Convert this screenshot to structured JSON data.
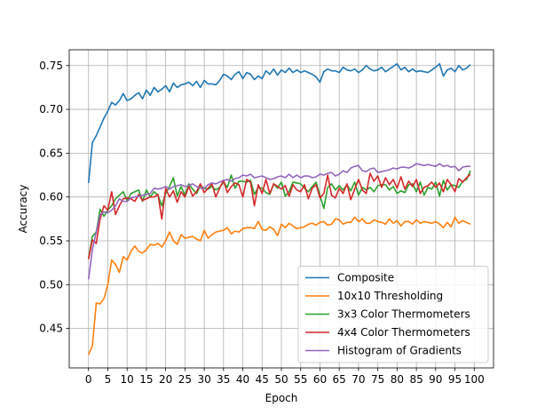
{
  "chart_data": {
    "type": "line",
    "title": "",
    "xlabel": "Epoch",
    "ylabel": "Accuracy",
    "xlim": [
      -5,
      105
    ],
    "ylim": [
      0.405,
      0.768
    ],
    "xticks": [
      0,
      5,
      10,
      15,
      20,
      25,
      30,
      35,
      40,
      45,
      50,
      55,
      60,
      65,
      70,
      75,
      80,
      85,
      90,
      95,
      100
    ],
    "yticks": [
      0.45,
      0.5,
      0.55,
      0.6,
      0.65,
      0.7,
      0.75
    ],
    "grid": true,
    "legend_position": "lower-right",
    "x": [
      0,
      1,
      2,
      3,
      4,
      5,
      6,
      7,
      8,
      9,
      10,
      11,
      12,
      13,
      14,
      15,
      16,
      17,
      18,
      19,
      20,
      21,
      22,
      23,
      24,
      25,
      26,
      27,
      28,
      29,
      30,
      31,
      32,
      33,
      34,
      35,
      36,
      37,
      38,
      39,
      40,
      41,
      42,
      43,
      44,
      45,
      46,
      47,
      48,
      49,
      50,
      51,
      52,
      53,
      54,
      55,
      56,
      57,
      58,
      59,
      60,
      61,
      62,
      63,
      64,
      65,
      66,
      67,
      68,
      69,
      70,
      71,
      72,
      73,
      74,
      75,
      76,
      77,
      78,
      79,
      80,
      81,
      82,
      83,
      84,
      85,
      86,
      87,
      88,
      89,
      90,
      91,
      92,
      93,
      94,
      95,
      96,
      97,
      98,
      99
    ],
    "series": [
      {
        "name": "Composite",
        "color": "#1f77b4",
        "values": [
          0.616,
          0.662,
          0.67,
          0.68,
          0.69,
          0.698,
          0.708,
          0.705,
          0.71,
          0.718,
          0.71,
          0.712,
          0.716,
          0.719,
          0.712,
          0.722,
          0.716,
          0.725,
          0.72,
          0.723,
          0.727,
          0.72,
          0.73,
          0.725,
          0.728,
          0.729,
          0.731,
          0.727,
          0.732,
          0.725,
          0.733,
          0.729,
          0.729,
          0.728,
          0.733,
          0.74,
          0.738,
          0.734,
          0.74,
          0.743,
          0.735,
          0.742,
          0.74,
          0.734,
          0.738,
          0.735,
          0.744,
          0.74,
          0.746,
          0.739,
          0.745,
          0.742,
          0.747,
          0.742,
          0.745,
          0.742,
          0.744,
          0.742,
          0.74,
          0.737,
          0.731,
          0.743,
          0.746,
          0.744,
          0.744,
          0.742,
          0.748,
          0.745,
          0.744,
          0.746,
          0.742,
          0.745,
          0.75,
          0.746,
          0.744,
          0.745,
          0.748,
          0.743,
          0.746,
          0.749,
          0.752,
          0.745,
          0.748,
          0.743,
          0.746,
          0.743,
          0.744,
          0.743,
          0.742,
          0.745,
          0.748,
          0.752,
          0.738,
          0.745,
          0.747,
          0.743,
          0.75,
          0.745,
          0.747,
          0.751
        ]
      },
      {
        "name": "10x10 Thresholding",
        "color": "#ff7f0e",
        "values": [
          0.42,
          0.43,
          0.479,
          0.478,
          0.484,
          0.5,
          0.528,
          0.523,
          0.514,
          0.532,
          0.528,
          0.538,
          0.544,
          0.538,
          0.536,
          0.54,
          0.546,
          0.545,
          0.547,
          0.543,
          0.55,
          0.56,
          0.55,
          0.546,
          0.557,
          0.553,
          0.554,
          0.555,
          0.552,
          0.55,
          0.562,
          0.553,
          0.557,
          0.56,
          0.561,
          0.562,
          0.565,
          0.558,
          0.561,
          0.56,
          0.564,
          0.565,
          0.565,
          0.564,
          0.572,
          0.563,
          0.562,
          0.566,
          0.563,
          0.556,
          0.569,
          0.565,
          0.57,
          0.567,
          0.564,
          0.565,
          0.566,
          0.569,
          0.57,
          0.568,
          0.571,
          0.572,
          0.568,
          0.569,
          0.575,
          0.574,
          0.569,
          0.571,
          0.571,
          0.577,
          0.572,
          0.575,
          0.57,
          0.57,
          0.574,
          0.572,
          0.571,
          0.569,
          0.575,
          0.57,
          0.573,
          0.567,
          0.572,
          0.572,
          0.569,
          0.574,
          0.57,
          0.572,
          0.571,
          0.57,
          0.572,
          0.569,
          0.565,
          0.571,
          0.566,
          0.577,
          0.57,
          0.573,
          0.571,
          0.569
        ]
      },
      {
        "name": "3x3 Color Thermometers",
        "color": "#2ca02c",
        "values": [
          0.53,
          0.555,
          0.56,
          0.586,
          0.578,
          0.585,
          0.59,
          0.598,
          0.602,
          0.606,
          0.596,
          0.604,
          0.606,
          0.608,
          0.595,
          0.608,
          0.6,
          0.606,
          0.602,
          0.59,
          0.604,
          0.612,
          0.622,
          0.601,
          0.612,
          0.602,
          0.615,
          0.609,
          0.604,
          0.613,
          0.61,
          0.609,
          0.612,
          0.608,
          0.611,
          0.617,
          0.611,
          0.625,
          0.61,
          0.618,
          0.618,
          0.617,
          0.619,
          0.603,
          0.611,
          0.61,
          0.605,
          0.603,
          0.615,
          0.61,
          0.617,
          0.601,
          0.606,
          0.617,
          0.616,
          0.615,
          0.61,
          0.606,
          0.612,
          0.617,
          0.602,
          0.587,
          0.611,
          0.615,
          0.608,
          0.613,
          0.608,
          0.614,
          0.607,
          0.617,
          0.602,
          0.611,
          0.608,
          0.611,
          0.606,
          0.613,
          0.614,
          0.614,
          0.608,
          0.612,
          0.604,
          0.607,
          0.605,
          0.614,
          0.615,
          0.606,
          0.617,
          0.602,
          0.611,
          0.609,
          0.617,
          0.601,
          0.619,
          0.608,
          0.614,
          0.613,
          0.611,
          0.618,
          0.62,
          0.63
        ]
      },
      {
        "name": "4x4 Color Thermometers",
        "color": "#d62728",
        "values": [
          0.529,
          0.551,
          0.547,
          0.575,
          0.59,
          0.585,
          0.606,
          0.58,
          0.59,
          0.598,
          0.599,
          0.598,
          0.595,
          0.603,
          0.596,
          0.598,
          0.6,
          0.6,
          0.603,
          0.575,
          0.61,
          0.6,
          0.607,
          0.594,
          0.606,
          0.6,
          0.612,
          0.601,
          0.606,
          0.615,
          0.605,
          0.61,
          0.615,
          0.6,
          0.61,
          0.619,
          0.605,
          0.612,
          0.616,
          0.614,
          0.6,
          0.62,
          0.617,
          0.59,
          0.614,
          0.604,
          0.62,
          0.604,
          0.615,
          0.612,
          0.609,
          0.613,
          0.601,
          0.614,
          0.608,
          0.606,
          0.614,
          0.598,
          0.61,
          0.614,
          0.599,
          0.604,
          0.625,
          0.602,
          0.599,
          0.61,
          0.604,
          0.615,
          0.597,
          0.609,
          0.62,
          0.608,
          0.604,
          0.627,
          0.618,
          0.624,
          0.611,
          0.622,
          0.614,
          0.62,
          0.61,
          0.623,
          0.609,
          0.618,
          0.612,
          0.62,
          0.604,
          0.611,
          0.613,
          0.617,
          0.611,
          0.616,
          0.606,
          0.62,
          0.614,
          0.606,
          0.621,
          0.617,
          0.622,
          0.626
        ]
      },
      {
        "name": "Histogram of Gradients",
        "color": "#9467bd",
        "values": [
          0.506,
          0.54,
          0.56,
          0.58,
          0.583,
          0.582,
          0.585,
          0.59,
          0.598,
          0.595,
          0.595,
          0.599,
          0.6,
          0.601,
          0.602,
          0.603,
          0.604,
          0.61,
          0.609,
          0.61,
          0.612,
          0.609,
          0.612,
          0.613,
          0.614,
          0.612,
          0.613,
          0.615,
          0.612,
          0.61,
          0.61,
          0.614,
          0.616,
          0.615,
          0.617,
          0.619,
          0.62,
          0.618,
          0.621,
          0.622,
          0.625,
          0.624,
          0.626,
          0.622,
          0.623,
          0.624,
          0.622,
          0.62,
          0.621,
          0.623,
          0.624,
          0.622,
          0.626,
          0.622,
          0.625,
          0.622,
          0.624,
          0.624,
          0.622,
          0.623,
          0.626,
          0.625,
          0.627,
          0.628,
          0.624,
          0.626,
          0.63,
          0.628,
          0.633,
          0.635,
          0.636,
          0.63,
          0.629,
          0.632,
          0.633,
          0.628,
          0.629,
          0.63,
          0.631,
          0.633,
          0.632,
          0.634,
          0.634,
          0.633,
          0.635,
          0.638,
          0.637,
          0.636,
          0.637,
          0.636,
          0.635,
          0.638,
          0.635,
          0.636,
          0.634,
          0.635,
          0.63,
          0.634,
          0.635,
          0.635
        ]
      }
    ]
  }
}
